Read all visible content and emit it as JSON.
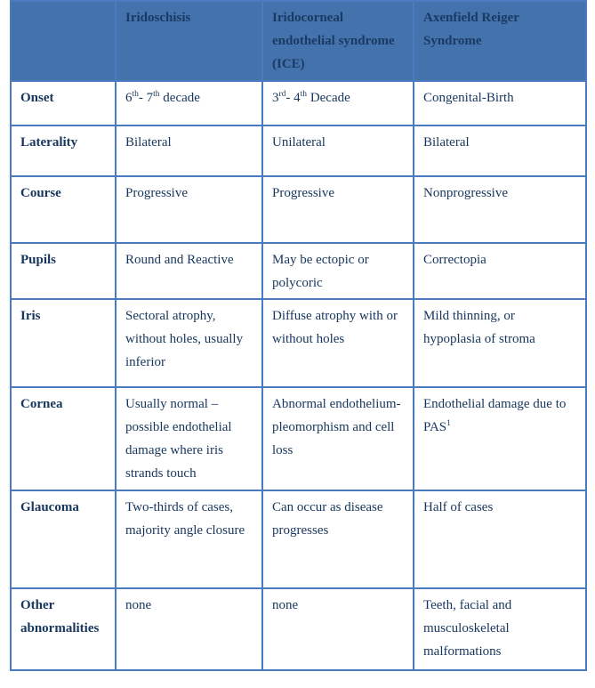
{
  "table": {
    "colors": {
      "header_bg": "#4472ac",
      "border": "#4a7abf",
      "text": "#17365d"
    },
    "header": {
      "corner": "",
      "columns": [
        "Iridoschisis",
        "Iridocorneal\nendothelial syndrome\n(ICE)",
        "Axenfield Reiger\nSyndrome"
      ]
    },
    "rows": [
      {
        "label": "Onset",
        "cells": [
          "6^{th}- 7^{th} decade",
          "3^{rd}- 4^{th} Decade",
          "Congenital-Birth"
        ]
      },
      {
        "label": "Laterality",
        "cells": [
          "Bilateral",
          "Unilateral",
          "Bilateral"
        ]
      },
      {
        "label": "Course",
        "cells": [
          "Progressive",
          "Progressive",
          "Nonprogressive"
        ]
      },
      {
        "label": "Pupils",
        "cells": [
          "Round and Reactive",
          "May be ectopic or\npolycoric",
          "Correctopia"
        ]
      },
      {
        "label": "Iris",
        "cells": [
          "Sectoral atrophy,\nwithout holes, usually\ninferior",
          "Diffuse atrophy with or\nwithout holes",
          "Mild thinning, or\nhypoplasia of stroma"
        ]
      },
      {
        "label": "Cornea",
        "cells": [
          "Usually normal –\npossible endothelial\ndamage where iris\nstrands touch",
          "Abnormal endothelium-\npleomorphism and cell\nloss",
          "Endothelial damage due to\nPAS^{1}"
        ]
      },
      {
        "label": "Glaucoma",
        "cells": [
          "Two-thirds of cases,\nmajority angle closure",
          "Can occur as disease\nprogresses",
          "Half of cases"
        ]
      },
      {
        "label": "Other\nabnormalities",
        "cells": [
          "none",
          "none",
          "Teeth, facial and\nmusculoskeletal\nmalformations"
        ]
      }
    ]
  }
}
